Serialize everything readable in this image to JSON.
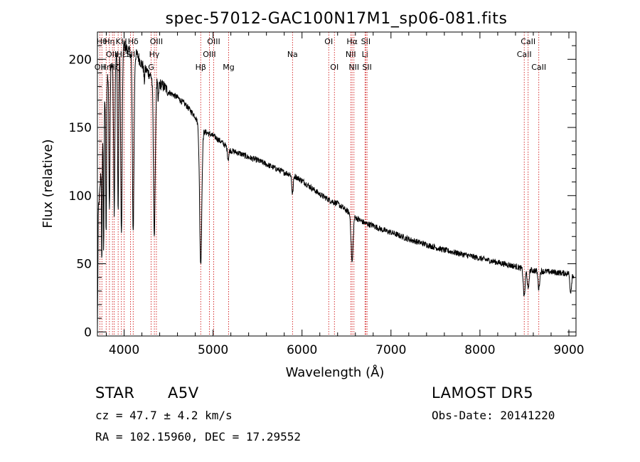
{
  "chart_data": {
    "type": "line",
    "title": "spec-57012-GAC100N17M1_sp06-081.fits",
    "xlabel": "Wavelength (Å)",
    "ylabel": "Flux (relative)",
    "xlim": [
      3700,
      9080
    ],
    "ylim": [
      -3,
      220
    ],
    "x_ticks": [
      4000,
      5000,
      6000,
      7000,
      8000,
      9000
    ],
    "y_ticks": [
      0,
      50,
      100,
      150,
      200
    ],
    "line_color": "#000000",
    "marker_color": "#cc0000",
    "continuum": [
      [
        3700,
        0
      ],
      [
        3710,
        90
      ],
      [
        3730,
        105
      ],
      [
        3760,
        150
      ],
      [
        3800,
        185
      ],
      [
        3850,
        195
      ],
      [
        3900,
        200
      ],
      [
        3950,
        210
      ],
      [
        4000,
        210
      ],
      [
        4050,
        206
      ],
      [
        4100,
        204
      ],
      [
        4150,
        203
      ],
      [
        4200,
        196
      ],
      [
        4250,
        192
      ],
      [
        4300,
        188
      ],
      [
        4350,
        185
      ],
      [
        4400,
        182
      ],
      [
        4450,
        180
      ],
      [
        4500,
        176
      ],
      [
        4600,
        172
      ],
      [
        4700,
        166
      ],
      [
        4800,
        158
      ],
      [
        4850,
        150
      ],
      [
        4900,
        147
      ],
      [
        5000,
        144
      ],
      [
        5100,
        139
      ],
      [
        5200,
        133
      ],
      [
        5300,
        131
      ],
      [
        5400,
        128
      ],
      [
        5500,
        126
      ],
      [
        5600,
        123
      ],
      [
        5700,
        120
      ],
      [
        5800,
        117
      ],
      [
        5900,
        115
      ],
      [
        6000,
        111
      ],
      [
        6100,
        106
      ],
      [
        6200,
        101
      ],
      [
        6300,
        97
      ],
      [
        6400,
        94
      ],
      [
        6500,
        89
      ],
      [
        6600,
        84
      ],
      [
        6700,
        80
      ],
      [
        6800,
        78
      ],
      [
        6900,
        75
      ],
      [
        7000,
        73
      ],
      [
        7200,
        68
      ],
      [
        7400,
        64
      ],
      [
        7600,
        60
      ],
      [
        7800,
        57
      ],
      [
        8000,
        54
      ],
      [
        8200,
        51
      ],
      [
        8400,
        48
      ],
      [
        8500,
        46
      ],
      [
        8600,
        45
      ],
      [
        8800,
        44
      ],
      [
        8950,
        43
      ],
      [
        9000,
        43
      ],
      [
        9020,
        28
      ],
      [
        9040,
        42
      ],
      [
        9060,
        40
      ]
    ],
    "absorption_features": [
      {
        "wavelength": 3750,
        "depth": 85,
        "width": 4
      },
      {
        "wavelength": 3770,
        "depth": 100,
        "width": 4
      },
      {
        "wavelength": 3798,
        "depth": 110,
        "width": 5
      },
      {
        "wavelength": 3835,
        "depth": 105,
        "width": 6
      },
      {
        "wavelength": 3889,
        "depth": 110,
        "width": 7
      },
      {
        "wavelength": 3933,
        "depth": 120,
        "width": 6
      },
      {
        "wavelength": 3970,
        "depth": 140,
        "width": 8
      },
      {
        "wavelength": 4102,
        "depth": 130,
        "width": 9
      },
      {
        "wavelength": 4227,
        "depth": 10,
        "width": 5
      },
      {
        "wavelength": 4340,
        "depth": 115,
        "width": 10
      },
      {
        "wavelength": 4383,
        "depth": 15,
        "width": 5
      },
      {
        "wavelength": 4861,
        "depth": 100,
        "width": 12
      },
      {
        "wavelength": 5170,
        "depth": 8,
        "width": 8
      },
      {
        "wavelength": 5893,
        "depth": 14,
        "width": 8
      },
      {
        "wavelength": 6563,
        "depth": 35,
        "width": 11
      },
      {
        "wavelength": 8498,
        "depth": 20,
        "width": 10
      },
      {
        "wavelength": 8542,
        "depth": 15,
        "width": 9
      },
      {
        "wavelength": 8662,
        "depth": 13,
        "width": 9
      }
    ],
    "noise_amplitude": 2.2,
    "line_markers": [
      {
        "wavelength": 3727,
        "label": "OII",
        "row": 3
      },
      {
        "wavelength": 3750,
        "label": "Hθ",
        "row": 1
      },
      {
        "wavelength": 3798,
        "label": "Hη",
        "row": 3
      },
      {
        "wavelength": 3835,
        "label": "Hη",
        "row": 1
      },
      {
        "wavelength": 3869,
        "label": "OIII",
        "row": 2
      },
      {
        "wavelength": 3889,
        "label": "Hζ",
        "row": 3
      },
      {
        "wavelength": 3933,
        "label": "K",
        "row": 1
      },
      {
        "wavelength": 3970,
        "label": "Hε",
        "row": 2
      },
      {
        "wavelength": 4000,
        "label": "H",
        "row": 1
      },
      {
        "wavelength": 4072,
        "label": "SII",
        "row": 2
      },
      {
        "wavelength": 4102,
        "label": "Hδ",
        "row": 1
      },
      {
        "wavelength": 4304,
        "label": "G",
        "row": 3
      },
      {
        "wavelength": 4340,
        "label": "Hγ",
        "row": 2
      },
      {
        "wavelength": 4363,
        "label": "OIII",
        "row": 1
      },
      {
        "wavelength": 4861,
        "label": "Hβ",
        "row": 3
      },
      {
        "wavelength": 4959,
        "label": "OIII",
        "row": 2
      },
      {
        "wavelength": 5007,
        "label": "OIII",
        "row": 1
      },
      {
        "wavelength": 5175,
        "label": "Mg",
        "row": 3
      },
      {
        "wavelength": 5893,
        "label": "Na",
        "row": 2
      },
      {
        "wavelength": 6300,
        "label": "OI",
        "row": 1
      },
      {
        "wavelength": 6364,
        "label": "OI",
        "row": 3
      },
      {
        "wavelength": 6548,
        "label": "NII",
        "row": 2
      },
      {
        "wavelength": 6563,
        "label": "Hα",
        "row": 1
      },
      {
        "wavelength": 6584,
        "label": "NII",
        "row": 3
      },
      {
        "wavelength": 6708,
        "label": "Li",
        "row": 2
      },
      {
        "wavelength": 6717,
        "label": "SII",
        "row": 1
      },
      {
        "wavelength": 6731,
        "label": "SII",
        "row": 3
      },
      {
        "wavelength": 8498,
        "label": "CaII",
        "row": 2
      },
      {
        "wavelength": 8542,
        "label": "CaII",
        "row": 1
      },
      {
        "wavelength": 8662,
        "label": "CaII",
        "row": 3
      }
    ]
  },
  "info": {
    "class_label": "STAR",
    "subclass_label": "A5V",
    "survey_label": "LAMOST DR5",
    "redshift_text": "cz = 47.7 ± 4.2 km/s",
    "obs_date_text": "Obs-Date: 20141220",
    "coords_text": "RA = 102.15960, DEC =  17.29552"
  }
}
